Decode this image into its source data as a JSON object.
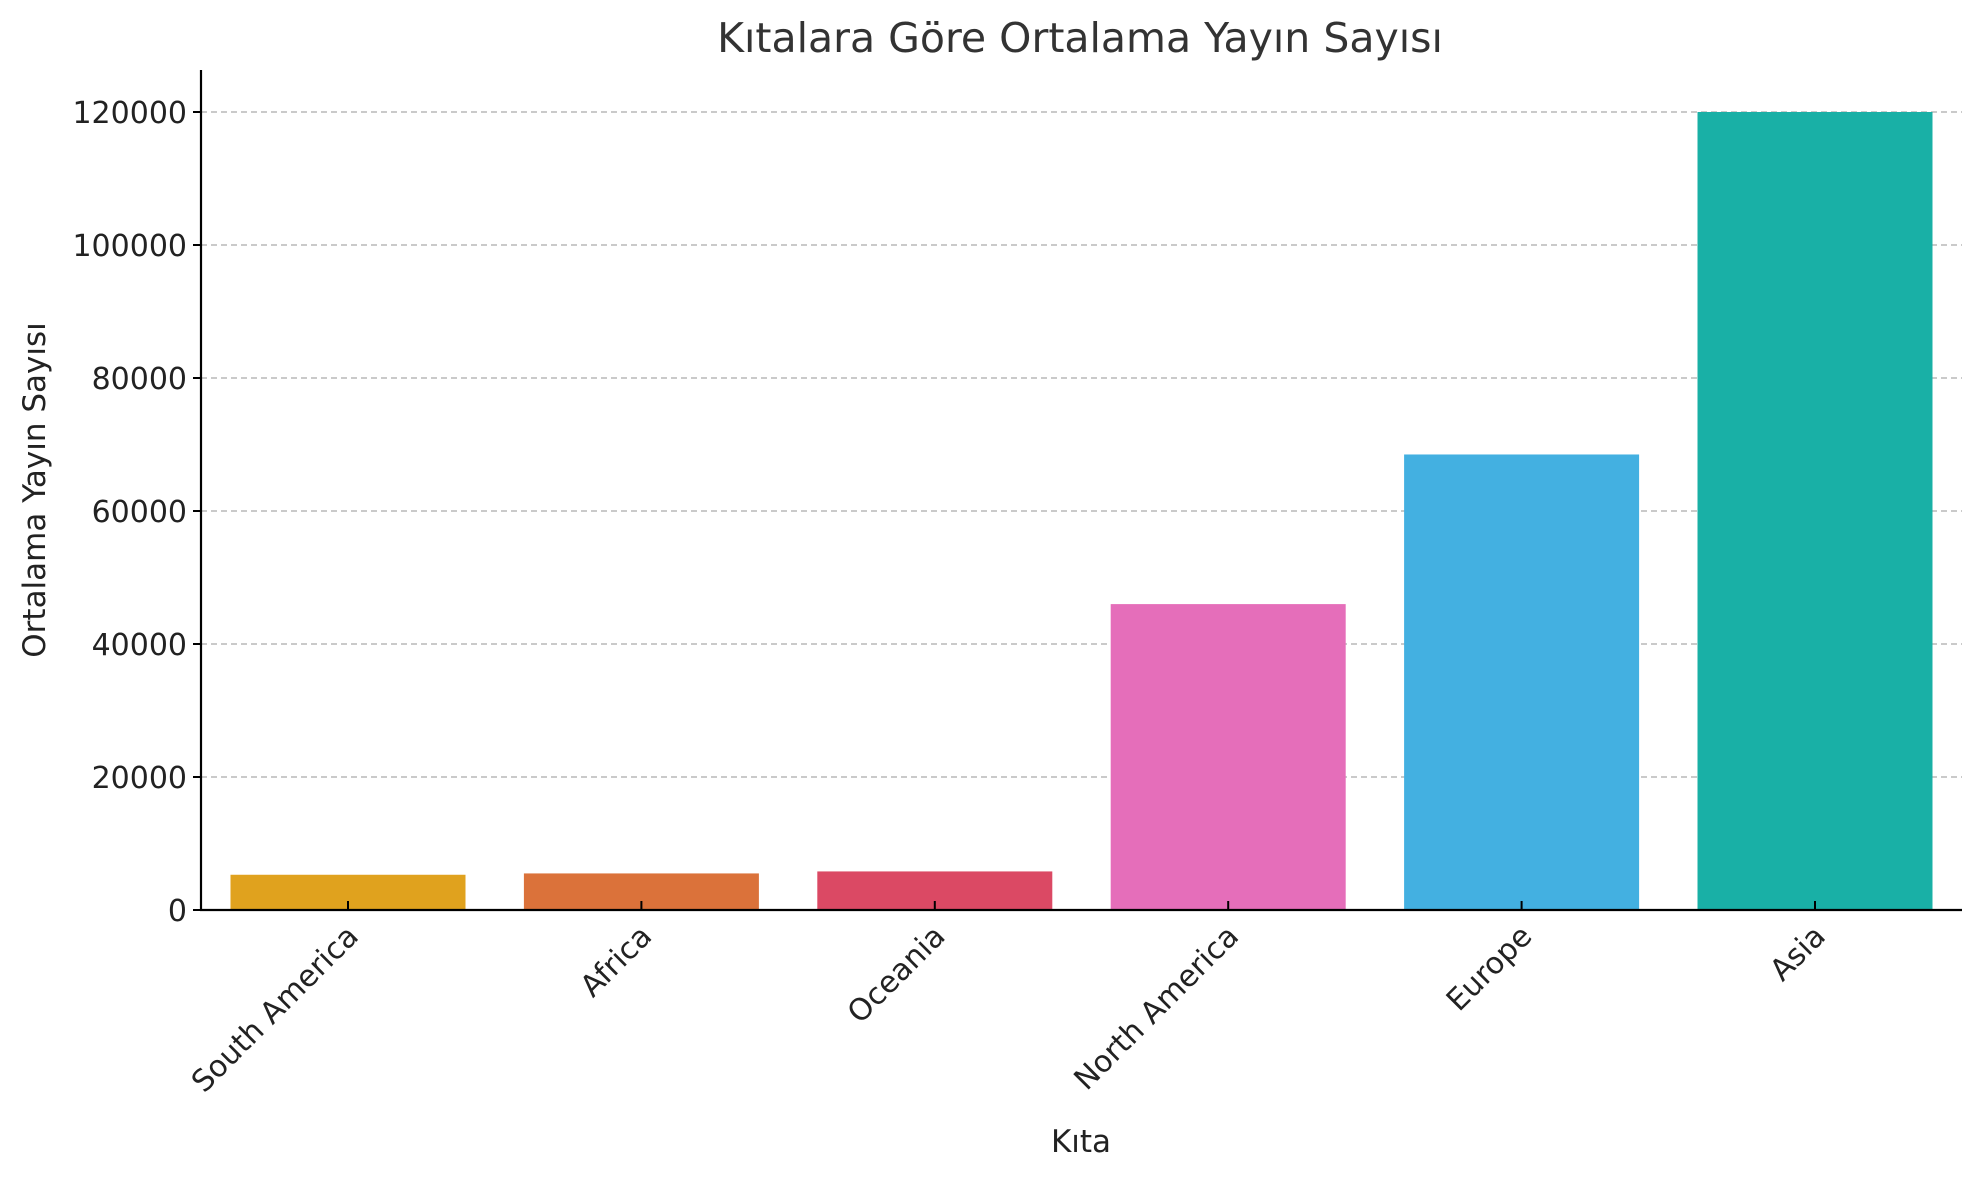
{
  "chart_data": {
    "type": "bar",
    "title": "Kıtalara Göre Ortalama Yayın Sayısı",
    "xlabel": "Kıta",
    "ylabel": "Ortalama Yayın Sayısı",
    "categories": [
      "South America",
      "Africa",
      "Oceania",
      "North America",
      "Europe",
      "Asia"
    ],
    "values": [
      5300,
      5500,
      5800,
      46000,
      68500,
      120000
    ],
    "colors": [
      "#E0A21E",
      "#DB723A",
      "#DB4964",
      "#E56EBA",
      "#43B0E1",
      "#19B0A6"
    ],
    "ylim": [
      0,
      126000
    ],
    "yticks": [
      0,
      20000,
      40000,
      60000,
      80000,
      100000,
      120000
    ],
    "ytick_labels": [
      "0",
      "20000",
      "40000",
      "60000",
      "80000",
      "100000",
      "120000"
    ],
    "grid": "horizontal-dashed",
    "legend": "none"
  }
}
